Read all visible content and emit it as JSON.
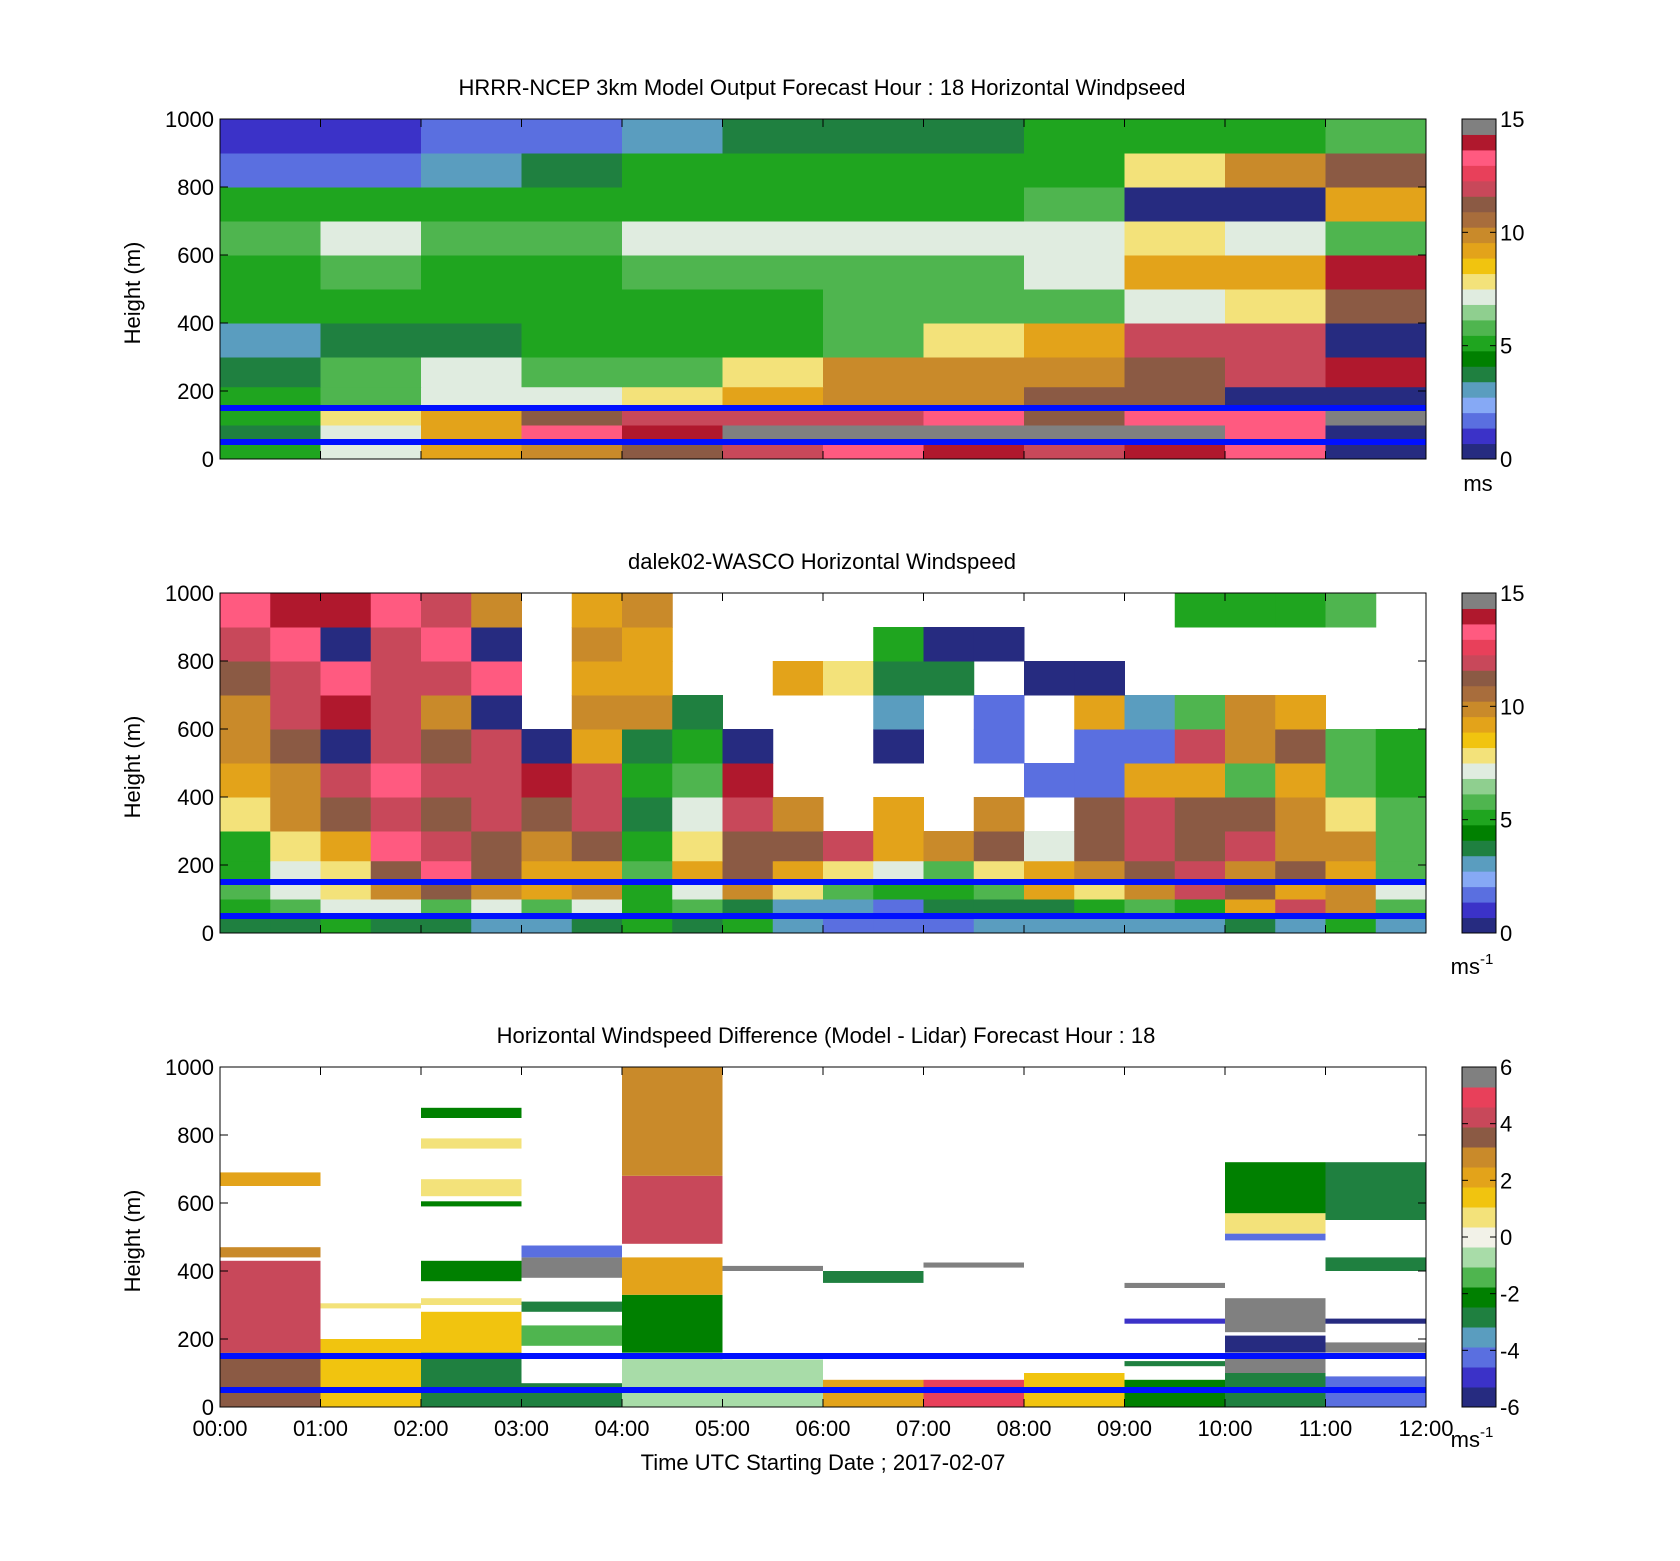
{
  "chart_data": [
    {
      "type": "heatmap",
      "title": "HRRR-NCEP 3km Model Output   Forecast Hour : 18 Horizontal Windpseed",
      "ylabel": "Height (m)",
      "xlabel": "",
      "ylim": [
        0,
        1000
      ],
      "xlim": [
        0,
        12
      ],
      "yticks": [
        "0",
        "200",
        "400",
        "600",
        "800",
        "1000"
      ],
      "yticks_values": [
        0,
        200,
        400,
        600,
        800,
        1000
      ],
      "xticks": [],
      "colorbar": {
        "range": [
          0,
          15
        ],
        "ticks": [
          "0",
          "5",
          "10",
          "15"
        ],
        "tick_values": [
          0,
          5,
          10,
          15
        ],
        "unit": "ms",
        "unit_sup": ""
      },
      "reference_lines_m": [
        50,
        150
      ],
      "x_hours": [
        0,
        1,
        2,
        3,
        4,
        5,
        6,
        7,
        8,
        9,
        10,
        11
      ],
      "y_heights_m": [
        25,
        75,
        125,
        175,
        250,
        350,
        450,
        550,
        650,
        750,
        850,
        950
      ],
      "values": [
        [
          5,
          7,
          9,
          10,
          11,
          12,
          13,
          14,
          12,
          14,
          13,
          0
        ],
        [
          4,
          7,
          9,
          13,
          14,
          15,
          15,
          15,
          15,
          15,
          13,
          0
        ],
        [
          5,
          8,
          9,
          11,
          12,
          12,
          12,
          13,
          11,
          13,
          13,
          15
        ],
        [
          5,
          6,
          7,
          7,
          8,
          9,
          10,
          10,
          11,
          11,
          0,
          0
        ],
        [
          4,
          6,
          7,
          6,
          6,
          8,
          10,
          10,
          10,
          11,
          12,
          14
        ],
        [
          3,
          4,
          4,
          5,
          5,
          5,
          6,
          8,
          9,
          12,
          12,
          0
        ],
        [
          5,
          5,
          5,
          5,
          5,
          5,
          6,
          6,
          6,
          7,
          8,
          11
        ],
        [
          5,
          6,
          5,
          5,
          6,
          6,
          6,
          6,
          7,
          9,
          9,
          14
        ],
        [
          6,
          7,
          6,
          6,
          7,
          7,
          7,
          7,
          7,
          8,
          7,
          6
        ],
        [
          5,
          5,
          5,
          5,
          5,
          5,
          5,
          5,
          6,
          0,
          0,
          9
        ],
        [
          2,
          2,
          3,
          4,
          5,
          5,
          5,
          5,
          5,
          8,
          10,
          11
        ],
        [
          1,
          1,
          2,
          2,
          3,
          4,
          4,
          4,
          5,
          5,
          5,
          6
        ]
      ]
    },
    {
      "type": "heatmap",
      "title": "dalek02-WASCO  Horizontal Windspeed",
      "ylabel": "Height (m)",
      "xlabel": "",
      "ylim": [
        0,
        1000
      ],
      "xlim": [
        0,
        12
      ],
      "yticks": [
        "0",
        "200",
        "400",
        "600",
        "800",
        "1000"
      ],
      "yticks_values": [
        0,
        200,
        400,
        600,
        800,
        1000
      ],
      "xticks": [],
      "colorbar": {
        "range": [
          0,
          15
        ],
        "ticks": [
          "0",
          "5",
          "10",
          "15"
        ],
        "tick_values": [
          0,
          5,
          10,
          15
        ],
        "unit": "ms",
        "unit_sup": "-1"
      },
      "reference_lines_m": [
        50,
        150
      ],
      "x_hours": [
        0,
        0.5,
        1,
        1.5,
        2,
        2.5,
        3,
        3.5,
        4,
        4.5,
        5,
        5.5,
        6,
        6.5,
        7,
        7.5,
        8,
        8.5,
        9,
        9.5,
        10,
        10.5,
        11,
        11.5
      ],
      "y_heights_m": [
        25,
        75,
        125,
        175,
        250,
        350,
        450,
        550,
        650,
        750,
        850,
        950
      ],
      "values": [
        [
          4,
          4,
          5,
          4,
          4,
          3,
          3,
          4,
          5,
          4,
          5,
          3,
          2,
          2,
          2,
          3,
          3,
          3,
          3,
          3,
          4,
          3,
          5,
          3
        ],
        [
          5,
          6,
          7,
          7,
          6,
          7,
          6,
          7,
          5,
          6,
          4,
          3,
          3,
          2,
          4,
          4,
          4,
          5,
          6,
          5,
          9,
          12,
          10,
          6
        ],
        [
          6,
          7,
          8,
          10,
          11,
          10,
          9,
          10,
          5,
          7,
          10,
          8,
          6,
          5,
          5,
          6,
          9,
          8,
          10,
          12,
          11,
          9,
          10,
          7
        ],
        [
          5,
          7,
          8,
          11,
          13,
          11,
          9,
          9,
          6,
          9,
          11,
          9,
          8,
          7,
          6,
          8,
          9,
          10,
          11,
          12,
          10,
          11,
          9,
          6
        ],
        [
          5,
          8,
          9,
          13,
          12,
          11,
          10,
          11,
          5,
          8,
          11,
          11,
          12,
          9,
          10,
          11,
          7,
          11,
          12,
          11,
          12,
          10,
          10,
          6
        ],
        [
          8,
          10,
          11,
          12,
          11,
          12,
          11,
          12,
          4,
          7,
          12,
          10,
          null,
          9,
          null,
          10,
          null,
          11,
          12,
          11,
          11,
          10,
          8,
          6
        ],
        [
          9,
          10,
          12,
          13,
          12,
          12,
          14,
          12,
          5,
          6,
          14,
          null,
          null,
          null,
          null,
          null,
          2,
          2,
          9,
          9,
          6,
          9,
          6,
          5
        ],
        [
          10,
          11,
          0,
          12,
          11,
          12,
          0,
          9,
          4,
          5,
          0,
          null,
          null,
          0,
          null,
          2,
          null,
          2,
          2,
          12,
          10,
          11,
          6,
          5
        ],
        [
          10,
          12,
          14,
          12,
          10,
          0,
          null,
          10,
          10,
          4,
          null,
          null,
          null,
          3,
          null,
          2,
          null,
          9,
          3,
          6,
          10,
          9,
          null,
          null
        ],
        [
          11,
          12,
          13,
          12,
          12,
          13,
          null,
          9,
          9,
          null,
          null,
          9,
          8,
          4,
          4,
          null,
          0,
          0,
          null,
          null,
          null,
          null,
          null,
          null
        ],
        [
          12,
          13,
          0,
          12,
          13,
          0,
          null,
          10,
          9,
          null,
          null,
          null,
          null,
          5,
          0,
          0,
          null,
          null,
          null,
          null,
          null,
          null,
          null,
          null
        ],
        [
          13,
          14,
          14,
          13,
          12,
          10,
          null,
          9,
          10,
          null,
          null,
          null,
          null,
          null,
          null,
          null,
          null,
          null,
          null,
          5,
          5,
          5,
          6,
          null
        ]
      ]
    },
    {
      "type": "heatmap",
      "title": "Horizontal Windspeed Difference (Model - Lidar) Forecast Hour : 18",
      "ylabel": "Height (m)",
      "xlabel": "Time UTC  Starting Date ; 2017-02-07",
      "ylim": [
        0,
        1000
      ],
      "xlim": [
        0,
        12
      ],
      "yticks": [
        "0",
        "200",
        "400",
        "600",
        "800",
        "1000"
      ],
      "yticks_values": [
        0,
        200,
        400,
        600,
        800,
        1000
      ],
      "xticks": [
        "00:00",
        "01:00",
        "02:00",
        "03:00",
        "04:00",
        "05:00",
        "06:00",
        "07:00",
        "08:00",
        "09:00",
        "10:00",
        "11:00",
        "12:00"
      ],
      "xticks_values": [
        0,
        1,
        2,
        3,
        4,
        5,
        6,
        7,
        8,
        9,
        10,
        11,
        12
      ],
      "colorbar": {
        "range": [
          -6,
          6
        ],
        "ticks": [
          "-6",
          "-4",
          "-2",
          "0",
          "2",
          "4",
          "6"
        ],
        "tick_values": [
          -6,
          -4,
          -2,
          0,
          2,
          4,
          6
        ],
        "unit": "ms",
        "unit_sup": "-1"
      },
      "reference_lines_m": [
        50,
        150
      ],
      "cells": [
        {
          "x0": 0,
          "x1": 1,
          "y0": 0,
          "y1": 160,
          "v": 3.5
        },
        {
          "x0": 0,
          "x1": 1,
          "y0": 160,
          "y1": 430,
          "v": 4.5
        },
        {
          "x0": 0,
          "x1": 1,
          "y0": 440,
          "y1": 470,
          "v": 3
        },
        {
          "x0": 0,
          "x1": 1,
          "y0": 650,
          "y1": 690,
          "v": 2
        },
        {
          "x0": 1,
          "x1": 2,
          "y0": 0,
          "y1": 200,
          "v": 1.5
        },
        {
          "x0": 1,
          "x1": 2,
          "y0": 290,
          "y1": 305,
          "v": 1
        },
        {
          "x0": 2,
          "x1": 3,
          "y0": 0,
          "y1": 160,
          "v": -2.5
        },
        {
          "x0": 2,
          "x1": 3,
          "y0": 160,
          "y1": 280,
          "v": 1.5
        },
        {
          "x0": 2,
          "x1": 3,
          "y0": 300,
          "y1": 320,
          "v": 0.5
        },
        {
          "x0": 2,
          "x1": 3,
          "y0": 370,
          "y1": 430,
          "v": -2
        },
        {
          "x0": 2,
          "x1": 3,
          "y0": 590,
          "y1": 605,
          "v": -2
        },
        {
          "x0": 2,
          "x1": 3,
          "y0": 620,
          "y1": 670,
          "v": 1
        },
        {
          "x0": 2,
          "x1": 3,
          "y0": 760,
          "y1": 790,
          "v": 0.7
        },
        {
          "x0": 2,
          "x1": 3,
          "y0": 850,
          "y1": 880,
          "v": -2
        },
        {
          "x0": 3,
          "x1": 4,
          "y0": 0,
          "y1": 70,
          "v": -3
        },
        {
          "x0": 3,
          "x1": 4,
          "y0": 180,
          "y1": 240,
          "v": -1.5
        },
        {
          "x0": 3,
          "x1": 4,
          "y0": 280,
          "y1": 310,
          "v": -3
        },
        {
          "x0": 3,
          "x1": 4,
          "y0": 380,
          "y1": 440,
          "v": 6
        },
        {
          "x0": 3,
          "x1": 4,
          "y0": 440,
          "y1": 475,
          "v": -4.5
        },
        {
          "x0": 4,
          "x1": 5,
          "y0": 0,
          "y1": 160,
          "v": -1
        },
        {
          "x0": 4,
          "x1": 5,
          "y0": 160,
          "y1": 330,
          "v": -2
        },
        {
          "x0": 4,
          "x1": 5,
          "y0": 330,
          "y1": 440,
          "v": 2
        },
        {
          "x0": 4,
          "x1": 5,
          "y0": 480,
          "y1": 680,
          "v": 4.5
        },
        {
          "x0": 4,
          "x1": 5,
          "y0": 680,
          "y1": 1000,
          "v": 3
        },
        {
          "x0": 5,
          "x1": 6,
          "y0": 0,
          "y1": 140,
          "v": -0.6
        },
        {
          "x0": 5,
          "x1": 6,
          "y0": 400,
          "y1": 415,
          "v": 6
        },
        {
          "x0": 6,
          "x1": 7,
          "y0": 0,
          "y1": 80,
          "v": 2
        },
        {
          "x0": 6,
          "x1": 7,
          "y0": 365,
          "y1": 400,
          "v": -3
        },
        {
          "x0": 7,
          "x1": 8,
          "y0": 0,
          "y1": 80,
          "v": 4.8
        },
        {
          "x0": 7,
          "x1": 8,
          "y0": 410,
          "y1": 425,
          "v": 6
        },
        {
          "x0": 8,
          "x1": 9,
          "y0": 0,
          "y1": 100,
          "v": 1.2
        },
        {
          "x0": 9,
          "x1": 10,
          "y0": 0,
          "y1": 80,
          "v": -2
        },
        {
          "x0": 9,
          "x1": 10,
          "y0": 120,
          "y1": 135,
          "v": -2.5
        },
        {
          "x0": 9,
          "x1": 10,
          "y0": 245,
          "y1": 260,
          "v": -5
        },
        {
          "x0": 9,
          "x1": 10,
          "y0": 350,
          "y1": 365,
          "v": 6
        },
        {
          "x0": 10,
          "x1": 11,
          "y0": 0,
          "y1": 100,
          "v": -2.5
        },
        {
          "x0": 10,
          "x1": 11,
          "y0": 100,
          "y1": 150,
          "v": 6
        },
        {
          "x0": 10,
          "x1": 11,
          "y0": 160,
          "y1": 210,
          "v": -5.5
        },
        {
          "x0": 10,
          "x1": 11,
          "y0": 220,
          "y1": 320,
          "v": 6
        },
        {
          "x0": 10,
          "x1": 11,
          "y0": 490,
          "y1": 510,
          "v": -4.5
        },
        {
          "x0": 10,
          "x1": 11,
          "y0": 510,
          "y1": 570,
          "v": 1
        },
        {
          "x0": 10,
          "x1": 11,
          "y0": 570,
          "y1": 720,
          "v": -1.8
        },
        {
          "x0": 11,
          "x1": 12,
          "y0": 0,
          "y1": 90,
          "v": -4
        },
        {
          "x0": 11,
          "x1": 12,
          "y0": 160,
          "y1": 190,
          "v": 6
        },
        {
          "x0": 11,
          "x1": 12,
          "y0": 245,
          "y1": 260,
          "v": -5.5
        },
        {
          "x0": 11,
          "x1": 12,
          "y0": 400,
          "y1": 440,
          "v": -2.5
        },
        {
          "x0": 11,
          "x1": 12,
          "y0": 550,
          "y1": 720,
          "v": -2.5
        }
      ]
    }
  ],
  "palette": {
    "model_lidar": [
      "#262b80",
      "#3b32c8",
      "#5a6fe0",
      "#86a9f5",
      "#5a9dbf",
      "#1f8040",
      "#008000",
      "#1fa51f",
      "#4fb54f",
      "#8fcf8f",
      "#e0ece0",
      "#f3e27a",
      "#f1c40f",
      "#e3a31a",
      "#c98a2a",
      "#a86d3c",
      "#8b5a44",
      "#c8485a",
      "#e8405a",
      "#ff5a80",
      "#b0182d",
      "#808080"
    ],
    "difference": [
      "#262b80",
      "#3b32c8",
      "#5a6fe0",
      "#5a9dbf",
      "#1f8040",
      "#008000",
      "#4fb54f",
      "#a8dca8",
      "#f2f2e8",
      "#f3e27a",
      "#f1c40f",
      "#e3a31a",
      "#c98a2a",
      "#8b5a44",
      "#c8485a",
      "#e8405a",
      "#808080"
    ],
    "reference_line": "#0010ff"
  }
}
